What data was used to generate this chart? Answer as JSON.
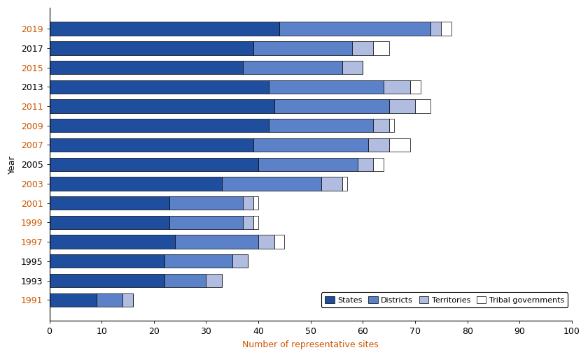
{
  "years": [
    "1991",
    "1993",
    "1995",
    "1997",
    "1999",
    "2001",
    "2003",
    "2005",
    "2007",
    "2009",
    "2011",
    "2013",
    "2015",
    "2017",
    "2019"
  ],
  "states": [
    9,
    22,
    22,
    24,
    23,
    23,
    33,
    40,
    39,
    42,
    43,
    42,
    37,
    39,
    44
  ],
  "districts": [
    5,
    8,
    13,
    16,
    14,
    14,
    19,
    19,
    22,
    20,
    22,
    22,
    19,
    19,
    29
  ],
  "territories": [
    2,
    3,
    3,
    3,
    2,
    2,
    4,
    3,
    4,
    3,
    5,
    5,
    4,
    4,
    2
  ],
  "tribal": [
    0,
    0,
    0,
    2,
    1,
    1,
    1,
    2,
    4,
    1,
    3,
    2,
    0,
    3,
    2
  ],
  "colors": {
    "states": "#1f4e9e",
    "districts": "#5b82c8",
    "territories": "#b0bde0",
    "tribal": "#ffffff"
  },
  "xlabel": "Number of representative sites",
  "ylabel": "Year",
  "xlim": [
    0,
    100
  ],
  "xticks": [
    0,
    10,
    20,
    30,
    40,
    50,
    60,
    70,
    80,
    90,
    100
  ],
  "legend_labels": [
    "States",
    "Districts",
    "Territories",
    "Tribal governments"
  ],
  "background_color": "#ffffff",
  "orange_years": [
    "1991",
    "1997",
    "1999",
    "2001",
    "2003",
    "2007",
    "2009",
    "2011",
    "2015",
    "2019"
  ],
  "xlabel_color": "#cc5500",
  "ylabel_color": "#000000",
  "bar_height": 0.7
}
